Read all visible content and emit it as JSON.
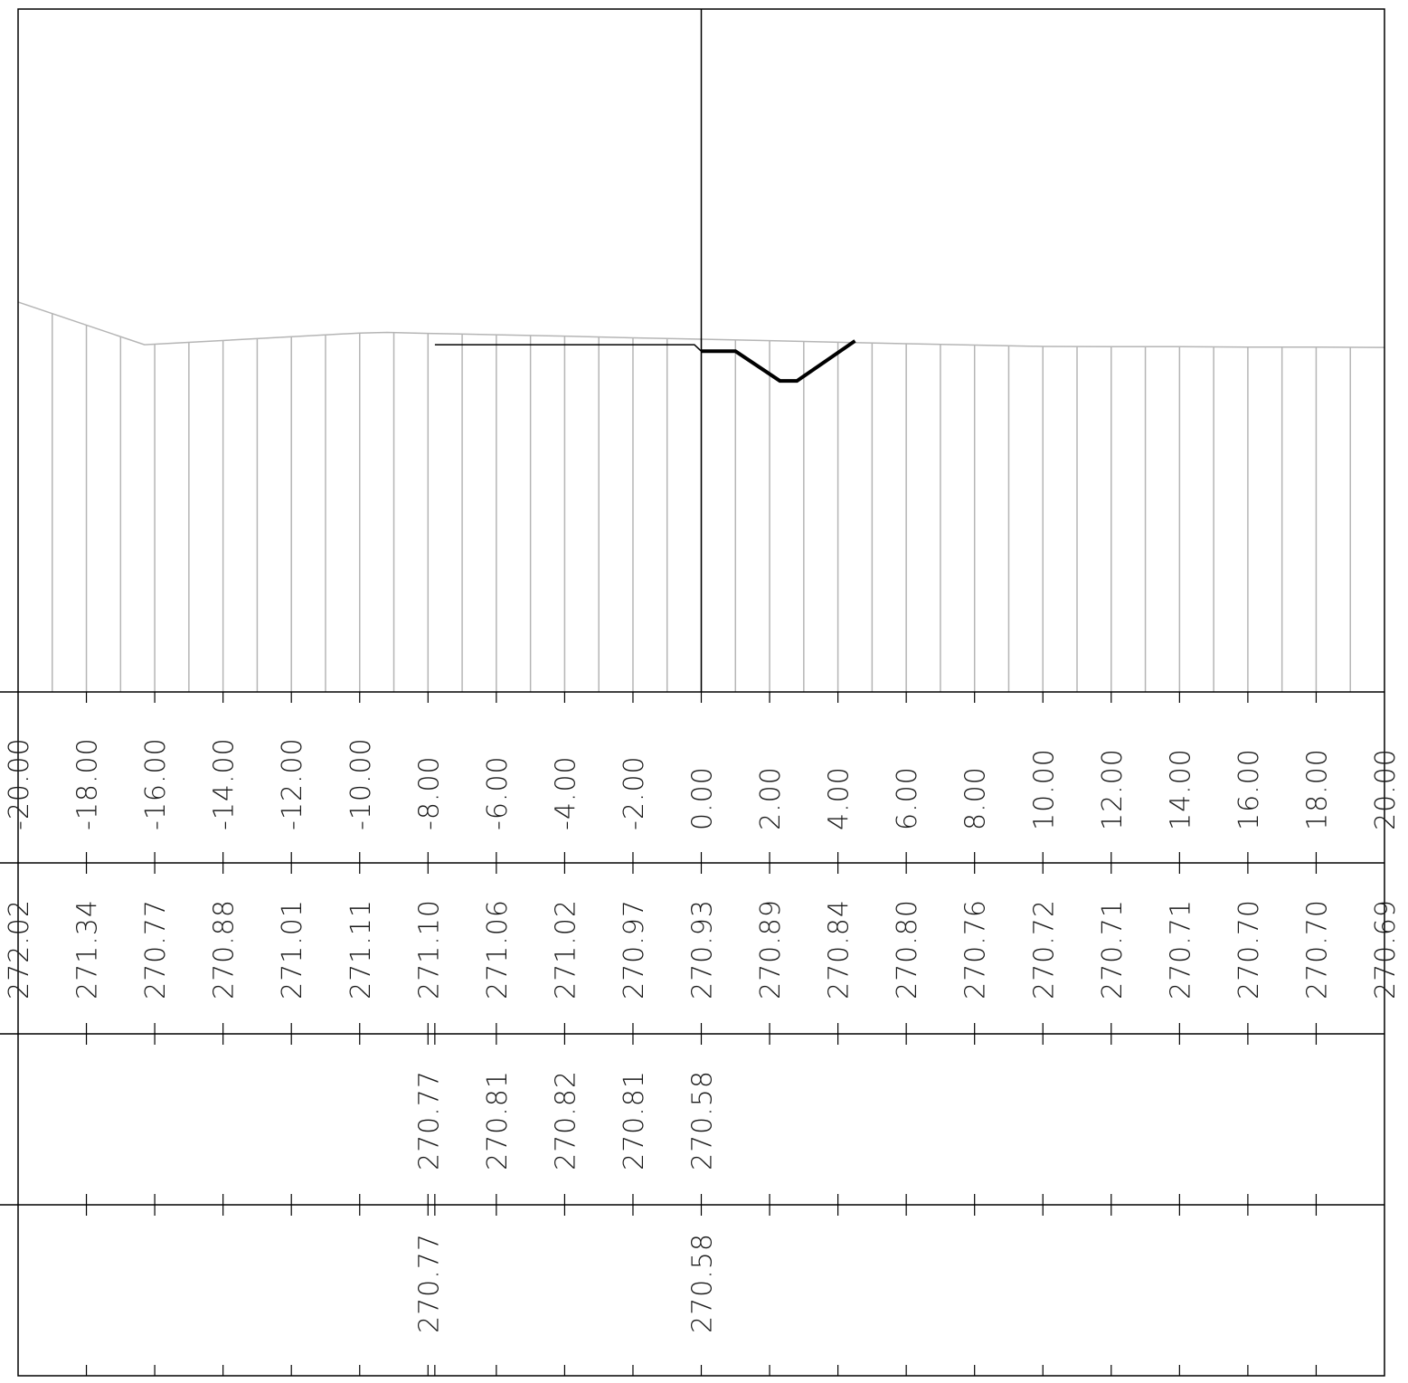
{
  "chart_data": {
    "type": "line",
    "description_rows": [
      "offsets",
      "existing_ground_elevations",
      "design_elevations",
      "key_design_elevations"
    ],
    "offset_labels": [
      "-20.00",
      "-18.00",
      "-16.00",
      "-14.00",
      "-12.00",
      "-10.00",
      "-8.00",
      "-6.00",
      "-4.00",
      "-2.00",
      "0.00",
      "2.00",
      "4.00",
      "6.00",
      "8.00",
      "10.00",
      "12.00",
      "14.00",
      "16.00",
      "18.00",
      "20.00"
    ],
    "offsets": [
      -20,
      -18,
      -16,
      -14,
      -12,
      -10,
      -8,
      -6,
      -4,
      -2,
      0,
      2,
      4,
      6,
      8,
      10,
      12,
      14,
      16,
      18,
      20
    ],
    "ground_elevation_labels": [
      "272.02",
      "271.34",
      "270.77",
      "270.88",
      "271.01",
      "271.11",
      "271.10",
      "271.06",
      "271.02",
      "270.97",
      "270.93",
      "270.89",
      "270.84",
      "270.80",
      "270.76",
      "270.72",
      "270.71",
      "270.71",
      "270.70",
      "270.70",
      "270.69"
    ],
    "design_rows": [
      {
        "offset": -8,
        "label": "270.77"
      },
      {
        "offset": -6,
        "label": "270.81"
      },
      {
        "offset": -4,
        "label": "270.82"
      },
      {
        "offset": -2,
        "label": "270.81"
      },
      {
        "offset": 0,
        "label": "270.58"
      }
    ],
    "key_rows": [
      {
        "offset": -8,
        "label": "270.77"
      },
      {
        "offset": 0,
        "label": "270.58"
      }
    ],
    "ground_profile": [
      {
        "x": -20,
        "y": 272.02
      },
      {
        "x": -16.3,
        "y": 270.77
      },
      {
        "x": -10,
        "y": 271.11
      },
      {
        "x": -9.2,
        "y": 271.13
      },
      {
        "x": -8,
        "y": 271.1
      },
      {
        "x": -6,
        "y": 271.06
      },
      {
        "x": -4,
        "y": 271.02
      },
      {
        "x": -2,
        "y": 270.97
      },
      {
        "x": 0,
        "y": 270.93
      },
      {
        "x": 2,
        "y": 270.89
      },
      {
        "x": 4,
        "y": 270.84
      },
      {
        "x": 6,
        "y": 270.8
      },
      {
        "x": 8,
        "y": 270.76
      },
      {
        "x": 10,
        "y": 270.72
      },
      {
        "x": 12,
        "y": 270.71
      },
      {
        "x": 14,
        "y": 270.71
      },
      {
        "x": 16,
        "y": 270.7
      },
      {
        "x": 18,
        "y": 270.7
      },
      {
        "x": 20,
        "y": 270.69
      }
    ],
    "design_profile": [
      {
        "x": -7.8,
        "y": 270.77
      },
      {
        "x": -0.2,
        "y": 270.77
      },
      {
        "x": 0,
        "y": 270.58
      }
    ],
    "ditch_profile": [
      {
        "x": 0,
        "y": 270.58
      },
      {
        "x": 1,
        "y": 270.58
      },
      {
        "x": 2.3,
        "y": 269.71
      },
      {
        "x": 2.8,
        "y": 269.71
      },
      {
        "x": 4.5,
        "y": 270.88
      }
    ],
    "xlim": [
      -20,
      20
    ],
    "ylim": [
      260.6,
      280.6
    ],
    "station_ticks": [
      -18,
      -16,
      -14,
      -12,
      -10,
      -8,
      -6,
      -4,
      -2,
      0,
      2,
      4,
      6,
      8,
      10,
      12,
      14,
      16,
      18
    ],
    "grid": true
  }
}
